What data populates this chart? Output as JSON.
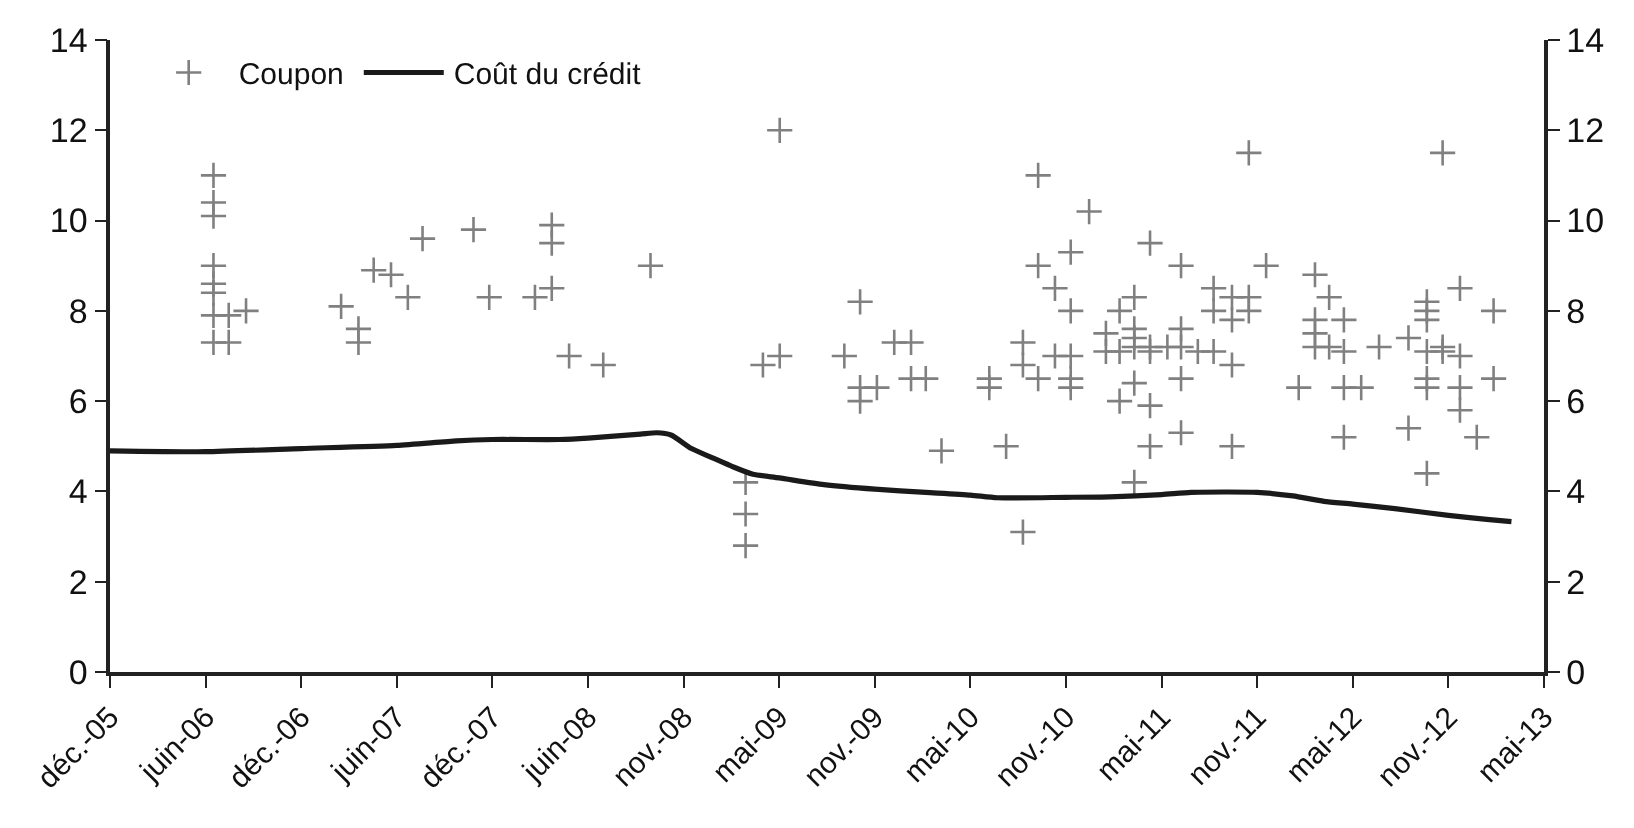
{
  "chart_data": {
    "type": "scatter",
    "legend": "top left",
    "xlim": [
      "2005-12-04",
      "2013-05-26"
    ],
    "xticks": [
      {
        "value": "2005-12-04",
        "label": "déc.-05"
      },
      {
        "value": "2006-06-04",
        "label": "juin-06"
      },
      {
        "value": "2006-12-03",
        "label": "déc.-06"
      },
      {
        "value": "2007-06-03",
        "label": "juin-07"
      },
      {
        "value": "2007-12-02",
        "label": "déc.-07"
      },
      {
        "value": "2008-06-01",
        "label": "juin-08"
      },
      {
        "value": "2008-11-30",
        "label": "nov.-08"
      },
      {
        "value": "2009-05-31",
        "label": "mai-09"
      },
      {
        "value": "2009-11-29",
        "label": "nov.-09"
      },
      {
        "value": "2010-05-30",
        "label": "mai-10"
      },
      {
        "value": "2010-11-28",
        "label": "nov.-10"
      },
      {
        "value": "2011-05-29",
        "label": "mai-11"
      },
      {
        "value": "2011-11-27",
        "label": "nov.-11"
      },
      {
        "value": "2012-05-27",
        "label": "mai-12"
      },
      {
        "value": "2012-11-25",
        "label": "nov.-12"
      },
      {
        "value": "2013-05-26",
        "label": "mai-13"
      }
    ],
    "ylim": [
      0,
      14
    ],
    "yticks": [
      0,
      2,
      4,
      6,
      8,
      10,
      12,
      14
    ],
    "y2lim": [
      0,
      14
    ],
    "y2ticks": [
      0,
      2,
      4,
      6,
      8,
      10,
      12,
      14
    ],
    "series": [
      {
        "name": "Coupon",
        "marker": "cross",
        "color": "#808080",
        "x": [
          "2006-06-19",
          "2006-06-19",
          "2006-06-19",
          "2006-06-19",
          "2006-06-19",
          "2006-06-19",
          "2006-06-19",
          "2006-06-19",
          "2006-07-18",
          "2006-07-18",
          "2006-08-20",
          "2007-02-17",
          "2007-03-22",
          "2007-03-22",
          "2007-04-20",
          "2007-05-23",
          "2007-06-24",
          "2007-07-22",
          "2007-10-27",
          "2007-11-26",
          "2008-02-21",
          "2008-03-24",
          "2008-03-24",
          "2008-03-24",
          "2008-04-26",
          "2008-06-30",
          "2008-09-28",
          "2009-03-28",
          "2009-03-28",
          "2009-03-28",
          "2009-04-30",
          "2009-06-01",
          "2009-06-01",
          "2009-10-02",
          "2009-11-01",
          "2009-11-01",
          "2009-11-01",
          "2009-12-03",
          "2010-01-05",
          "2010-02-06",
          "2010-02-06",
          "2010-03-06",
          "2010-04-05",
          "2010-07-05",
          "2010-07-05",
          "2010-08-06",
          "2010-09-07",
          "2010-09-07",
          "2010-09-07",
          "2010-10-06",
          "2010-10-06",
          "2010-10-06",
          "2010-11-07",
          "2010-11-07",
          "2010-12-07",
          "2010-12-07",
          "2010-12-07",
          "2010-12-07",
          "2010-12-07",
          "2011-01-11",
          "2011-02-12",
          "2011-02-12",
          "2011-03-10",
          "2011-03-10",
          "2011-03-10",
          "2011-04-07",
          "2011-04-07",
          "2011-04-07",
          "2011-04-07",
          "2011-04-07",
          "2011-04-07",
          "2011-05-07",
          "2011-05-07",
          "2011-05-07",
          "2011-05-07",
          "2011-05-07",
          "2011-06-09",
          "2011-07-05",
          "2011-07-05",
          "2011-07-05",
          "2011-07-05",
          "2011-07-05",
          "2011-08-06",
          "2011-09-05",
          "2011-09-05",
          "2011-09-05",
          "2011-10-10",
          "2011-10-10",
          "2011-10-10",
          "2011-10-10",
          "2011-11-11",
          "2011-11-11",
          "2011-11-11",
          "2011-12-14",
          "2012-02-14",
          "2012-03-16",
          "2012-03-16",
          "2012-03-16",
          "2012-03-16",
          "2012-04-12",
          "2012-04-12",
          "2012-05-10",
          "2012-05-10",
          "2012-05-10",
          "2012-05-10",
          "2012-06-12",
          "2012-07-16",
          "2012-09-10",
          "2012-09-10",
          "2012-10-15",
          "2012-10-15",
          "2012-10-15",
          "2012-10-15",
          "2012-10-15",
          "2012-10-15",
          "2012-10-15",
          "2012-11-14",
          "2012-11-14",
          "2012-11-14",
          "2012-12-17",
          "2012-12-17",
          "2012-12-17",
          "2012-12-17",
          "2013-01-18",
          "2013-02-19",
          "2013-02-19"
        ],
        "values": [
          11.0,
          10.4,
          10.1,
          9.0,
          8.6,
          8.4,
          7.9,
          7.3,
          7.9,
          7.3,
          8.0,
          8.1,
          7.6,
          7.3,
          8.9,
          8.8,
          8.3,
          9.6,
          9.8,
          8.3,
          8.3,
          9.9,
          9.5,
          8.5,
          7.0,
          6.8,
          9.0,
          4.2,
          3.5,
          2.8,
          6.8,
          12.0,
          7.0,
          7.0,
          8.2,
          6.3,
          6.0,
          6.3,
          7.3,
          7.3,
          6.5,
          6.5,
          4.9,
          6.5,
          6.3,
          5.0,
          7.3,
          6.8,
          3.1,
          11.0,
          9.0,
          6.5,
          8.5,
          7.0,
          9.3,
          8.0,
          7.0,
          6.5,
          6.3,
          10.2,
          7.5,
          7.1,
          8.0,
          7.1,
          6.0,
          8.3,
          7.6,
          7.4,
          7.2,
          6.4,
          4.2,
          9.5,
          7.2,
          7.1,
          5.9,
          5.0,
          7.2,
          7.6,
          7.2,
          9.0,
          6.5,
          5.3,
          7.1,
          8.5,
          8.0,
          7.1,
          8.3,
          7.8,
          6.8,
          5.0,
          11.5,
          8.3,
          8.0,
          9.0,
          6.3,
          8.8,
          7.8,
          7.5,
          7.2,
          8.3,
          7.2,
          7.8,
          7.1,
          6.3,
          5.2,
          6.3,
          7.2,
          7.4,
          5.4,
          8.2,
          8.0,
          7.8,
          7.1,
          6.5,
          6.3,
          4.4,
          11.5,
          7.2,
          7.1,
          8.5,
          7.0,
          6.3,
          5.8,
          5.2,
          8.0,
          6.5
        ]
      },
      {
        "name": "Coût du crédit",
        "type": "line",
        "color": "#1a1a1a",
        "marker": "none",
        "line_style": "solid",
        "x": [
          "2005-12-04",
          "2006-06-04",
          "2006-12-03",
          "2007-06-03",
          "2007-09-25",
          "2007-12-02",
          "2008-04-07",
          "2008-06-01",
          "2008-09-09",
          "2008-10-10",
          "2008-11-06",
          "2008-12-15",
          "2009-01-23",
          "2009-03-03",
          "2009-04-11",
          "2009-05-31",
          "2009-08-24",
          "2009-11-29",
          "2010-03-06",
          "2010-05-30",
          "2010-07-20",
          "2010-11-28",
          "2011-02-19",
          "2011-05-29",
          "2011-07-24",
          "2011-11-27",
          "2012-02-03",
          "2012-04-02",
          "2012-05-27",
          "2012-08-15",
          "2012-11-25",
          "2013-02-06",
          "2013-03-25"
        ],
        "values": [
          4.9,
          4.88,
          4.95,
          5.02,
          5.12,
          5.15,
          5.15,
          5.18,
          5.27,
          5.3,
          5.25,
          4.95,
          4.75,
          4.55,
          4.38,
          4.3,
          4.15,
          4.05,
          3.98,
          3.92,
          3.86,
          3.87,
          3.88,
          3.93,
          3.98,
          3.98,
          3.9,
          3.78,
          3.72,
          3.62,
          3.47,
          3.38,
          3.33
        ]
      }
    ]
  }
}
